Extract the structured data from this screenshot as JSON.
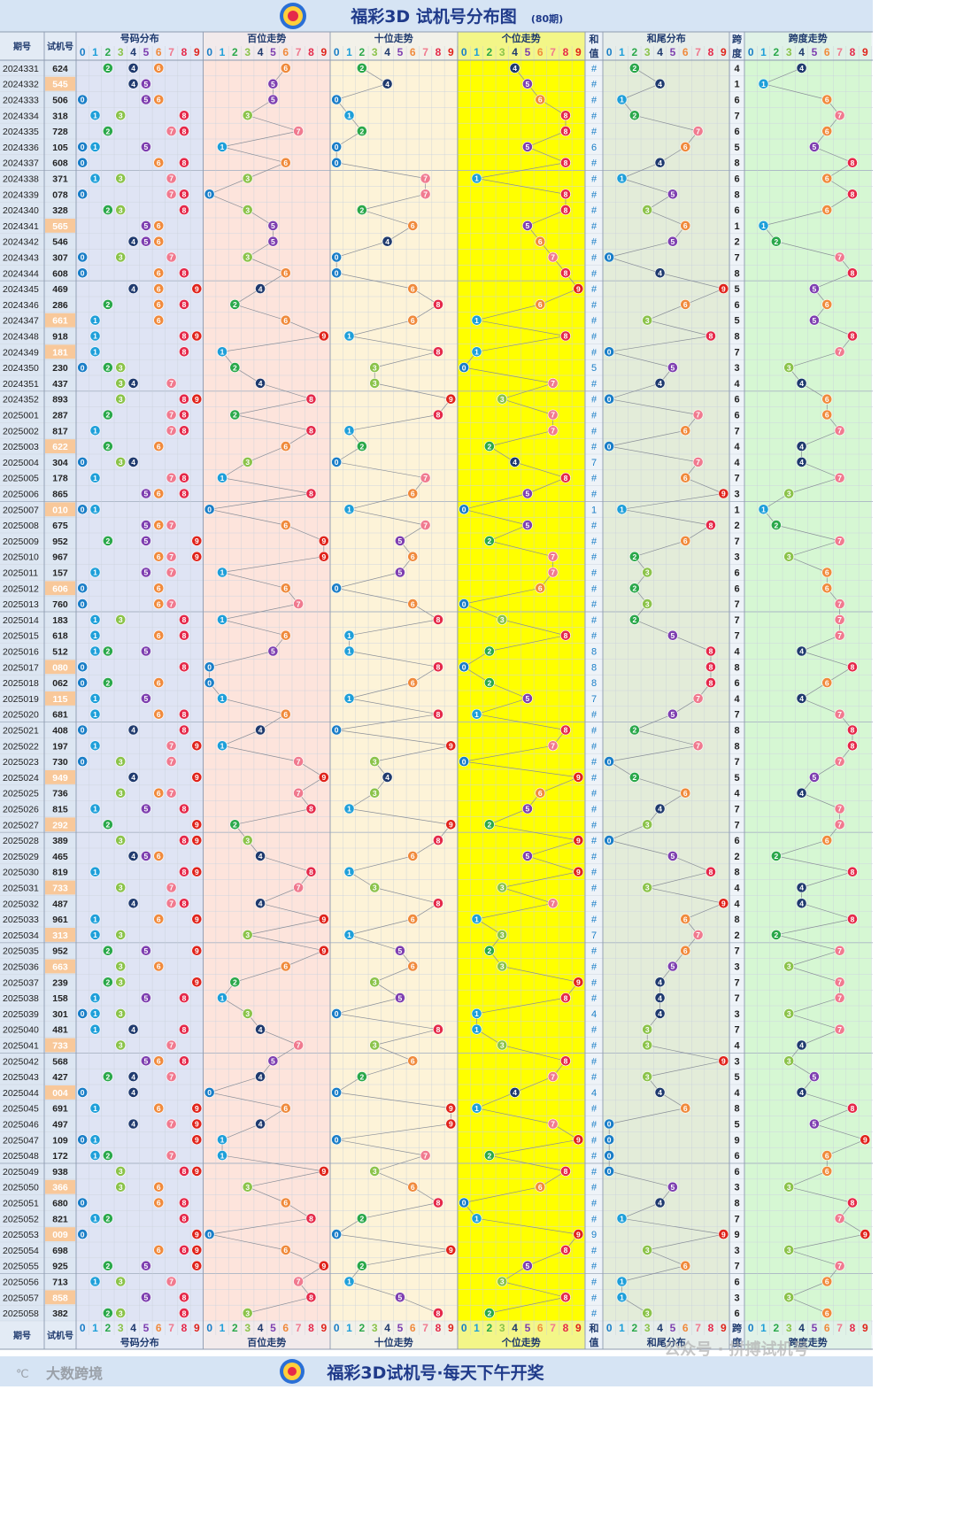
{
  "header": {
    "title": "福彩3D 试机号分布图",
    "period_note": "(80期)"
  },
  "footer": {
    "title": "福彩3D试机号·每天下午开奖",
    "brand": "大数跨境",
    "watermark": "公众号 · 拼搏试机号"
  },
  "columns": {
    "period": "期号",
    "trial": "试机号",
    "dist": "号码分布",
    "hundreds": "百位走势",
    "tens": "十位走势",
    "units": "个位走势",
    "sum_top": "和",
    "sum_bottom": "值",
    "sum_tail": "和尾分布",
    "span_top": "跨",
    "span_bottom": "度",
    "span_trend": "跨度走势",
    "digits": [
      "0",
      "1",
      "2",
      "3",
      "4",
      "5",
      "6",
      "7",
      "8",
      "9"
    ]
  },
  "colors": {
    "ball": [
      "#1a7ec7",
      "#1e9fd9",
      "#2aa84a",
      "#8bc34a",
      "#1f3a6e",
      "#7e3fb0",
      "#f08a3c",
      "#f07a8f",
      "#e5294a",
      "#e0231b"
    ],
    "hundreds_bg": "#fde4dc",
    "tens_bg": "#fdf3d8",
    "units_bg": "#ffff00",
    "dist_bg": "#dfe4f4",
    "tail_bg": "#e3ecd9",
    "span_bg": "#d6f7d3",
    "highlight_bg": "#f8c89a"
  },
  "chart_data": {
    "type": "table",
    "rows": [
      {
        "period": "2024331",
        "trial": "624",
        "sum": "#",
        "span": "4"
      },
      {
        "period": "2024332",
        "trial": "545",
        "sum": "#",
        "span": "1"
      },
      {
        "period": "2024333",
        "trial": "506",
        "sum": "#",
        "span": "6"
      },
      {
        "period": "2024334",
        "trial": "318",
        "sum": "#",
        "span": "7"
      },
      {
        "period": "2024335",
        "trial": "728",
        "sum": "#",
        "span": "6"
      },
      {
        "period": "2024336",
        "trial": "105",
        "sum": "6",
        "span": "5"
      },
      {
        "period": "2024337",
        "trial": "608",
        "sum": "#",
        "span": "8"
      },
      {
        "period": "2024338",
        "trial": "371",
        "sum": "#",
        "span": "6"
      },
      {
        "period": "2024339",
        "trial": "078",
        "sum": "#",
        "span": "8"
      },
      {
        "period": "2024340",
        "trial": "328",
        "sum": "#",
        "span": "6"
      },
      {
        "period": "2024341",
        "trial": "565",
        "sum": "#",
        "span": "1"
      },
      {
        "period": "2024342",
        "trial": "546",
        "sum": "#",
        "span": "2"
      },
      {
        "period": "2024343",
        "trial": "307",
        "sum": "#",
        "span": "7"
      },
      {
        "period": "2024344",
        "trial": "608",
        "sum": "#",
        "span": "8"
      },
      {
        "period": "2024345",
        "trial": "469",
        "sum": "#",
        "span": "5"
      },
      {
        "period": "2024346",
        "trial": "286",
        "sum": "#",
        "span": "6"
      },
      {
        "period": "2024347",
        "trial": "661",
        "sum": "#",
        "span": "5"
      },
      {
        "period": "2024348",
        "trial": "918",
        "sum": "#",
        "span": "8"
      },
      {
        "period": "2024349",
        "trial": "181",
        "sum": "#",
        "span": "7"
      },
      {
        "period": "2024350",
        "trial": "230",
        "sum": "5",
        "span": "3"
      },
      {
        "period": "2024351",
        "trial": "437",
        "sum": "#",
        "span": "4"
      },
      {
        "period": "2024352",
        "trial": "893",
        "sum": "#",
        "span": "6"
      },
      {
        "period": "2025001",
        "trial": "287",
        "sum": "#",
        "span": "6"
      },
      {
        "period": "2025002",
        "trial": "817",
        "sum": "#",
        "span": "7"
      },
      {
        "period": "2025003",
        "trial": "622",
        "sum": "#",
        "span": "4"
      },
      {
        "period": "2025004",
        "trial": "304",
        "sum": "7",
        "span": "4"
      },
      {
        "period": "2025005",
        "trial": "178",
        "sum": "#",
        "span": "7"
      },
      {
        "period": "2025006",
        "trial": "865",
        "sum": "#",
        "span": "3"
      },
      {
        "period": "2025007",
        "trial": "010",
        "sum": "1",
        "span": "1"
      },
      {
        "period": "2025008",
        "trial": "675",
        "sum": "#",
        "span": "2"
      },
      {
        "period": "2025009",
        "trial": "952",
        "sum": "#",
        "span": "7"
      },
      {
        "period": "2025010",
        "trial": "967",
        "sum": "#",
        "span": "3"
      },
      {
        "period": "2025011",
        "trial": "157",
        "sum": "#",
        "span": "6"
      },
      {
        "period": "2025012",
        "trial": "606",
        "sum": "#",
        "span": "6"
      },
      {
        "period": "2025013",
        "trial": "760",
        "sum": "#",
        "span": "7"
      },
      {
        "period": "2025014",
        "trial": "183",
        "sum": "#",
        "span": "7"
      },
      {
        "period": "2025015",
        "trial": "618",
        "sum": "#",
        "span": "7"
      },
      {
        "period": "2025016",
        "trial": "512",
        "sum": "8",
        "span": "4"
      },
      {
        "period": "2025017",
        "trial": "080",
        "sum": "8",
        "span": "8"
      },
      {
        "period": "2025018",
        "trial": "062",
        "sum": "8",
        "span": "6"
      },
      {
        "period": "2025019",
        "trial": "115",
        "sum": "7",
        "span": "4"
      },
      {
        "period": "2025020",
        "trial": "681",
        "sum": "#",
        "span": "7"
      },
      {
        "period": "2025021",
        "trial": "408",
        "sum": "#",
        "span": "8"
      },
      {
        "period": "2025022",
        "trial": "197",
        "sum": "#",
        "span": "8"
      },
      {
        "period": "2025023",
        "trial": "730",
        "sum": "#",
        "span": "7"
      },
      {
        "period": "2025024",
        "trial": "949",
        "sum": "#",
        "span": "5"
      },
      {
        "period": "2025025",
        "trial": "736",
        "sum": "#",
        "span": "4"
      },
      {
        "period": "2025026",
        "trial": "815",
        "sum": "#",
        "span": "7"
      },
      {
        "period": "2025027",
        "trial": "292",
        "sum": "#",
        "span": "7"
      },
      {
        "period": "2025028",
        "trial": "389",
        "sum": "#",
        "span": "6"
      },
      {
        "period": "2025029",
        "trial": "465",
        "sum": "#",
        "span": "2"
      },
      {
        "period": "2025030",
        "trial": "819",
        "sum": "#",
        "span": "8"
      },
      {
        "period": "2025031",
        "trial": "733",
        "sum": "#",
        "span": "4"
      },
      {
        "period": "2025032",
        "trial": "487",
        "sum": "#",
        "span": "4"
      },
      {
        "period": "2025033",
        "trial": "961",
        "sum": "#",
        "span": "8"
      },
      {
        "period": "2025034",
        "trial": "313",
        "sum": "7",
        "span": "2"
      },
      {
        "period": "2025035",
        "trial": "952",
        "sum": "#",
        "span": "7"
      },
      {
        "period": "2025036",
        "trial": "663",
        "sum": "#",
        "span": "3"
      },
      {
        "period": "2025037",
        "trial": "239",
        "sum": "#",
        "span": "7"
      },
      {
        "period": "2025038",
        "trial": "158",
        "sum": "#",
        "span": "7"
      },
      {
        "period": "2025039",
        "trial": "301",
        "sum": "4",
        "span": "3"
      },
      {
        "period": "2025040",
        "trial": "481",
        "sum": "#",
        "span": "7"
      },
      {
        "period": "2025041",
        "trial": "733",
        "sum": "#",
        "span": "4"
      },
      {
        "period": "2025042",
        "trial": "568",
        "sum": "#",
        "span": "3"
      },
      {
        "period": "2025043",
        "trial": "427",
        "sum": "#",
        "span": "5"
      },
      {
        "period": "2025044",
        "trial": "004",
        "sum": "4",
        "span": "4"
      },
      {
        "period": "2025045",
        "trial": "691",
        "sum": "#",
        "span": "8"
      },
      {
        "period": "2025046",
        "trial": "497",
        "sum": "#",
        "span": "5"
      },
      {
        "period": "2025047",
        "trial": "109",
        "sum": "#",
        "span": "9"
      },
      {
        "period": "2025048",
        "trial": "172",
        "sum": "#",
        "span": "6"
      },
      {
        "period": "2025049",
        "trial": "938",
        "sum": "#",
        "span": "6"
      },
      {
        "period": "2025050",
        "trial": "366",
        "sum": "#",
        "span": "3"
      },
      {
        "period": "2025051",
        "trial": "680",
        "sum": "#",
        "span": "8"
      },
      {
        "period": "2025052",
        "trial": "821",
        "sum": "#",
        "span": "7"
      },
      {
        "period": "2025053",
        "trial": "009",
        "sum": "9",
        "span": "9"
      },
      {
        "period": "2025054",
        "trial": "698",
        "sum": "#",
        "span": "3"
      },
      {
        "period": "2025055",
        "trial": "925",
        "sum": "#",
        "span": "7"
      },
      {
        "period": "2025056",
        "trial": "713",
        "sum": "#",
        "span": "6"
      },
      {
        "period": "2025057",
        "trial": "858",
        "sum": "#",
        "span": "3"
      },
      {
        "period": "2025058",
        "trial": "382",
        "sum": "#",
        "span": "6"
      }
    ]
  }
}
